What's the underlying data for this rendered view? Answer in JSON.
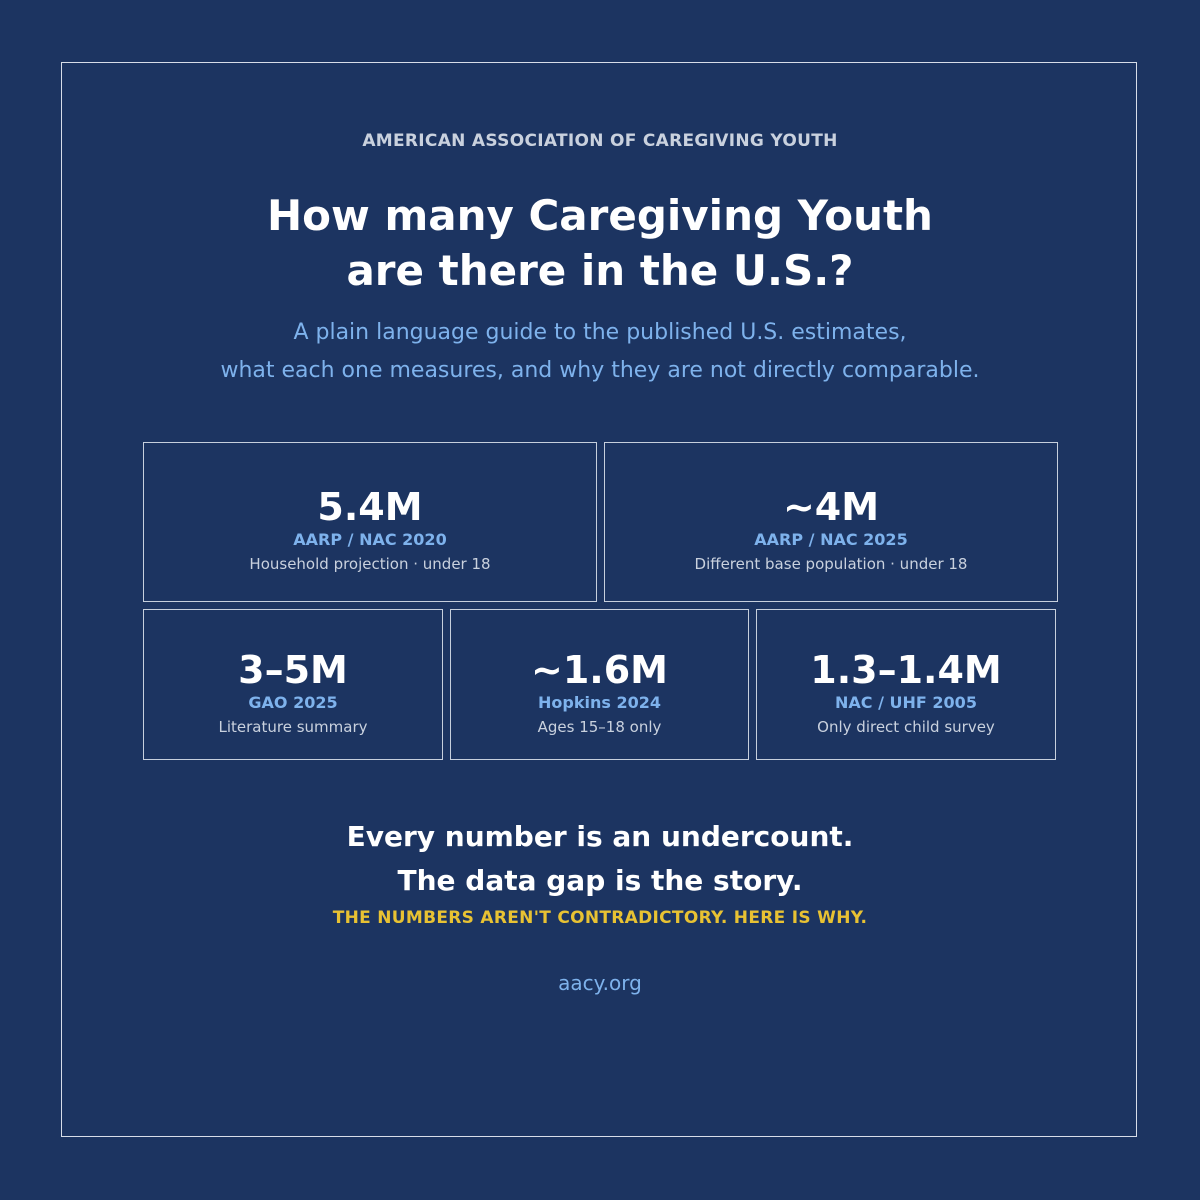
{
  "header": {
    "organization": "AMERICAN ASSOCIATION OF CAREGIVING YOUTH",
    "title_line1": "How many Caregiving Youth",
    "title_line2": "are there in the U.S.?",
    "subtitle_line1": "A plain language guide to the published U.S. estimates,",
    "subtitle_line2": "what each one measures, and why they are not directly comparable."
  },
  "estimates": [
    {
      "value": "5.4M",
      "source": "AARP / NAC 2020",
      "note": "Household projection · under 18"
    },
    {
      "value": "~4M",
      "source": "AARP / NAC 2025",
      "note": "Different base population · under 18"
    },
    {
      "value": "3–5M",
      "source": "GAO 2025",
      "note": "Literature summary"
    },
    {
      "value": "~1.6M",
      "source": "Hopkins 2024",
      "note": "Ages 15–18 only"
    },
    {
      "value": "1.3–1.4M",
      "source": "NAC / UHF 2005",
      "note": "Only direct child survey"
    }
  ],
  "footer": {
    "tagline_line1": "Every number is an undercount.",
    "tagline_line2": "The data gap is the story.",
    "callout": "THE NUMBERS AREN'T CONTRADICTORY. HERE IS WHY.",
    "url": "aacy.org"
  },
  "colors": {
    "background": "#1c3461",
    "accent_blue": "#7eb2ec",
    "accent_yellow": "#e8c233"
  }
}
